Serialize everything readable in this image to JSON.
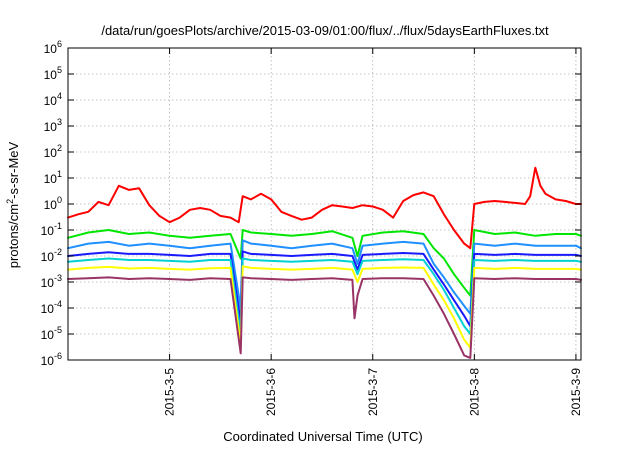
{
  "chart_data": {
    "type": "line",
    "title": "/data/run/goesPlots/archive/2015-03-09/01:00/flux/../flux/5daysEarthFluxes.txt",
    "xlabel": "Coordinated Universal Time (UTC)",
    "ylabel": "protons/cm²-s-sr-MeV",
    "ylabel_parts": {
      "pre": "protons/cm",
      "sup": "2",
      "post": "-s-sr-MeV"
    },
    "yscale": "log",
    "ylim": [
      1e-06,
      1000000.0
    ],
    "xlim": [
      4.0,
      9.05
    ],
    "grid": true,
    "x_ticks": [
      {
        "value": 5,
        "label": "2015-3-5"
      },
      {
        "value": 6,
        "label": "2015-3-6"
      },
      {
        "value": 7,
        "label": "2015-3-7"
      },
      {
        "value": 8,
        "label": "2015-3-8"
      },
      {
        "value": 9,
        "label": "2015-3-9"
      }
    ],
    "y_ticks": [
      {
        "exp": -6,
        "base": "10",
        "sup": "-6"
      },
      {
        "exp": -5,
        "base": "10",
        "sup": "-5"
      },
      {
        "exp": -4,
        "base": "10",
        "sup": "-4"
      },
      {
        "exp": -3,
        "base": "10",
        "sup": "-3"
      },
      {
        "exp": -2,
        "base": "10",
        "sup": "-2"
      },
      {
        "exp": -1,
        "base": "10",
        "sup": "-1"
      },
      {
        "exp": 0,
        "base": "10",
        "sup": "0"
      },
      {
        "exp": 1,
        "base": "10",
        "sup": "1"
      },
      {
        "exp": 2,
        "base": "10",
        "sup": "2"
      },
      {
        "exp": 3,
        "base": "10",
        "sup": "3"
      },
      {
        "exp": 4,
        "base": "10",
        "sup": "4"
      },
      {
        "exp": 5,
        "base": "10",
        "sup": "5"
      },
      {
        "exp": 6,
        "base": "10",
        "sup": "6"
      }
    ],
    "series": [
      {
        "color": "#ff0000",
        "x": [
          4.0,
          4.1,
          4.2,
          4.3,
          4.4,
          4.5,
          4.6,
          4.7,
          4.8,
          4.9,
          5.0,
          5.1,
          5.2,
          5.3,
          5.4,
          5.5,
          5.6,
          5.68,
          5.72,
          5.8,
          5.9,
          6.0,
          6.1,
          6.2,
          6.3,
          6.4,
          6.5,
          6.6,
          6.7,
          6.8,
          6.9,
          7.0,
          7.1,
          7.2,
          7.3,
          7.4,
          7.5,
          7.6,
          7.7,
          7.8,
          7.9,
          7.96,
          8.0,
          8.1,
          8.2,
          8.3,
          8.4,
          8.5,
          8.55,
          8.6,
          8.65,
          8.7,
          8.8,
          8.9,
          9.0,
          9.05
        ],
        "y": [
          0.3,
          0.4,
          0.5,
          1.2,
          0.9,
          5.0,
          3.5,
          4.0,
          0.9,
          0.35,
          0.2,
          0.3,
          0.6,
          0.7,
          0.6,
          0.35,
          0.3,
          0.2,
          2.0,
          1.5,
          2.5,
          1.5,
          0.5,
          0.35,
          0.25,
          0.3,
          0.6,
          0.9,
          0.8,
          0.7,
          0.9,
          0.8,
          0.6,
          0.3,
          1.3,
          2.2,
          2.8,
          2.0,
          0.4,
          0.1,
          0.03,
          0.02,
          1.0,
          1.2,
          1.3,
          1.2,
          1.1,
          1.0,
          2.0,
          25.0,
          5.0,
          2.5,
          1.5,
          1.3,
          1.0,
          1.0
        ]
      },
      {
        "color": "#00e600",
        "x": [
          4.0,
          4.2,
          4.4,
          4.6,
          4.8,
          5.0,
          5.2,
          5.4,
          5.6,
          5.7,
          5.72,
          5.8,
          6.0,
          6.2,
          6.4,
          6.6,
          6.8,
          6.85,
          6.9,
          7.1,
          7.3,
          7.5,
          7.6,
          7.7,
          7.8,
          7.9,
          7.96,
          8.0,
          8.2,
          8.4,
          8.6,
          8.8,
          9.0,
          9.05
        ],
        "y": [
          0.05,
          0.08,
          0.1,
          0.07,
          0.08,
          0.06,
          0.05,
          0.06,
          0.07,
          0.008,
          0.1,
          0.08,
          0.07,
          0.06,
          0.07,
          0.09,
          0.05,
          0.01,
          0.06,
          0.08,
          0.09,
          0.07,
          0.02,
          0.008,
          0.002,
          0.0006,
          0.0003,
          0.1,
          0.07,
          0.08,
          0.06,
          0.07,
          0.07,
          0.06
        ]
      },
      {
        "color": "#1e90ff",
        "x": [
          4.0,
          4.2,
          4.4,
          4.6,
          4.8,
          5.0,
          5.2,
          5.4,
          5.6,
          5.7,
          5.72,
          5.8,
          6.0,
          6.2,
          6.4,
          6.6,
          6.8,
          6.85,
          6.9,
          7.1,
          7.3,
          7.5,
          7.6,
          7.7,
          7.8,
          7.9,
          7.96,
          8.0,
          8.2,
          8.4,
          8.6,
          8.8,
          9.0,
          9.05
        ],
        "y": [
          0.02,
          0.03,
          0.035,
          0.025,
          0.03,
          0.025,
          0.02,
          0.025,
          0.03,
          0.0001,
          0.04,
          0.03,
          0.025,
          0.02,
          0.025,
          0.03,
          0.02,
          0.005,
          0.025,
          0.03,
          0.035,
          0.03,
          0.005,
          0.0015,
          0.0004,
          0.00012,
          6e-05,
          0.03,
          0.025,
          0.03,
          0.025,
          0.025,
          0.025,
          0.02
        ]
      },
      {
        "color": "#1a1aff",
        "x": [
          4.0,
          4.2,
          4.4,
          4.6,
          4.8,
          5.0,
          5.2,
          5.4,
          5.6,
          5.7,
          5.72,
          5.8,
          6.0,
          6.2,
          6.4,
          6.6,
          6.8,
          6.85,
          6.9,
          7.1,
          7.3,
          7.5,
          7.6,
          7.7,
          7.8,
          7.9,
          7.96,
          8.0,
          8.2,
          8.4,
          8.6,
          8.8,
          9.0,
          9.05
        ],
        "y": [
          0.01,
          0.012,
          0.014,
          0.012,
          0.012,
          0.011,
          0.01,
          0.012,
          0.012,
          3e-05,
          0.015,
          0.012,
          0.011,
          0.01,
          0.011,
          0.012,
          0.01,
          0.003,
          0.011,
          0.012,
          0.013,
          0.012,
          0.003,
          0.0008,
          0.0002,
          5e-05,
          2e-05,
          0.012,
          0.011,
          0.012,
          0.011,
          0.011,
          0.011,
          0.01
        ]
      },
      {
        "color": "#00d2d2",
        "x": [
          4.0,
          4.2,
          4.4,
          4.6,
          4.8,
          5.0,
          5.2,
          5.4,
          5.6,
          5.7,
          5.72,
          5.8,
          6.0,
          6.2,
          6.4,
          6.6,
          6.8,
          6.85,
          6.9,
          7.1,
          7.3,
          7.5,
          7.6,
          7.7,
          7.8,
          7.9,
          7.96,
          8.0,
          8.2,
          8.4,
          8.6,
          8.8,
          9.0,
          9.05
        ],
        "y": [
          0.006,
          0.007,
          0.008,
          0.007,
          0.007,
          0.0065,
          0.006,
          0.007,
          0.007,
          1e-05,
          0.008,
          0.007,
          0.0065,
          0.006,
          0.0065,
          0.007,
          0.006,
          0.002,
          0.0065,
          0.007,
          0.0075,
          0.007,
          0.002,
          0.0005,
          0.0001,
          2e-05,
          1e-05,
          0.007,
          0.0065,
          0.007,
          0.0065,
          0.0065,
          0.0065,
          0.006
        ]
      },
      {
        "color": "#ffff00",
        "x": [
          4.0,
          4.2,
          4.4,
          4.6,
          4.8,
          5.0,
          5.2,
          5.4,
          5.6,
          5.7,
          5.72,
          5.8,
          6.0,
          6.2,
          6.4,
          6.6,
          6.8,
          6.85,
          6.9,
          7.1,
          7.3,
          7.5,
          7.6,
          7.7,
          7.8,
          7.9,
          7.96,
          8.0,
          8.2,
          8.4,
          8.6,
          8.8,
          9.0,
          9.05
        ],
        "y": [
          0.003,
          0.0035,
          0.0038,
          0.0033,
          0.0035,
          0.0032,
          0.003,
          0.0034,
          0.0035,
          4e-06,
          0.004,
          0.0035,
          0.0032,
          0.003,
          0.0032,
          0.0035,
          0.003,
          0.001,
          0.0032,
          0.0035,
          0.0036,
          0.0035,
          0.0008,
          0.0002,
          4e-05,
          6e-06,
          3e-06,
          0.0035,
          0.0032,
          0.0035,
          0.0032,
          0.0032,
          0.0032,
          0.003
        ]
      },
      {
        "color": "#993366",
        "x": [
          4.0,
          4.2,
          4.4,
          4.6,
          4.8,
          5.0,
          5.2,
          5.4,
          5.6,
          5.7,
          5.72,
          5.8,
          6.0,
          6.2,
          6.4,
          6.6,
          6.8,
          6.82,
          6.85,
          6.9,
          7.1,
          7.3,
          7.5,
          7.6,
          7.7,
          7.8,
          7.9,
          7.96,
          8.0,
          8.2,
          8.4,
          8.6,
          8.8,
          9.0,
          9.05
        ],
        "y": [
          0.0013,
          0.0014,
          0.0015,
          0.0013,
          0.0014,
          0.0013,
          0.0012,
          0.0014,
          0.0013,
          1.8e-06,
          0.0015,
          0.0014,
          0.0013,
          0.0012,
          0.0013,
          0.0014,
          0.0012,
          4e-05,
          0.0003,
          0.0013,
          0.0014,
          0.0014,
          0.0013,
          0.0003,
          6e-05,
          1e-05,
          1.5e-06,
          1.2e-06,
          0.0014,
          0.0013,
          0.0014,
          0.0013,
          0.0013,
          0.0013,
          0.0012
        ]
      }
    ]
  }
}
